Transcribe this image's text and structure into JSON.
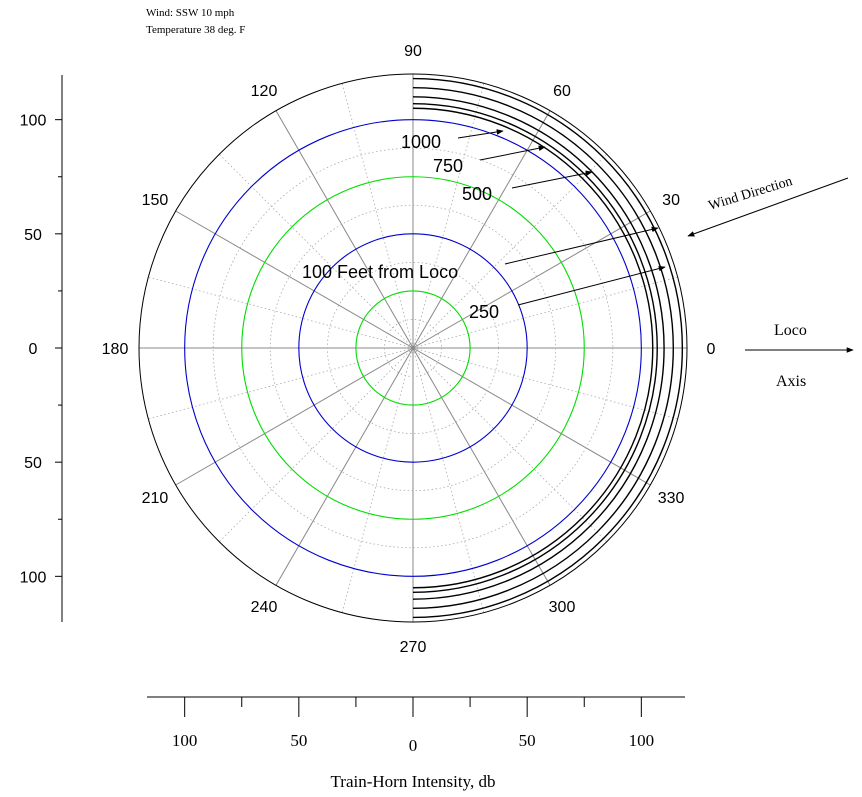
{
  "chart_data": {
    "type": "polar",
    "notes": [
      "Wind: SSW 10 mph",
      "Temperature 38 deg. F"
    ],
    "radial_range": [
      0,
      120
    ],
    "angular_ticks": [
      "0",
      "30",
      "60",
      "90",
      "120",
      "150",
      "180",
      "210",
      "240",
      "270",
      "300",
      "330"
    ],
    "left_axis_ticks": [
      "100",
      "50",
      "0",
      "50",
      "100"
    ],
    "bottom_axis_ticks": [
      "100",
      "50",
      "0",
      "50",
      "100"
    ],
    "xlabel": "Train-Horn Intensity, db",
    "reference_circles": [
      {
        "radius": 25,
        "color": "#00dd00"
      },
      {
        "radius": 50,
        "color": "#0000cc"
      },
      {
        "radius": 75,
        "color": "#00dd00"
      },
      {
        "radius": 100,
        "color": "#0000cc"
      }
    ],
    "series": [
      {
        "name": "100 Feet from Loco",
        "radius": 105
      },
      {
        "name": "250",
        "radius": 107
      },
      {
        "name": "500",
        "radius": 110
      },
      {
        "name": "750",
        "radius": 114
      },
      {
        "name": "1000",
        "radius": 118
      }
    ],
    "annotations": {
      "wind_direction": "Wind Direction",
      "loco": "Loco",
      "axis": "Axis"
    }
  }
}
